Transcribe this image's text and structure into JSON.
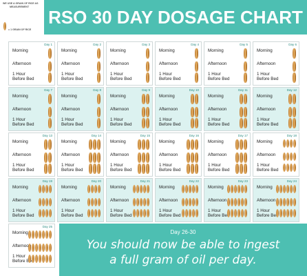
{
  "header": {
    "title": "RSO 30 DAY DOSAGE CHART",
    "legend_line1": "WE USE A GRAIN OF RICE AS",
    "legend_line2": "MEASUREMENT",
    "legend_note": "= 1 GRAIN OF RICE"
  },
  "row_labels": {
    "morning": "Morning",
    "afternoon": "Afternoon",
    "bed_line1": "1 Hour",
    "bed_line2": "Before Bed"
  },
  "days": [
    {
      "day": "Day 1",
      "morning": 1,
      "afternoon": 1,
      "bed": 1
    },
    {
      "day": "Day 2",
      "morning": 1,
      "afternoon": 1,
      "bed": 1
    },
    {
      "day": "Day 3",
      "morning": 1,
      "afternoon": 1,
      "bed": 1
    },
    {
      "day": "Day 4",
      "morning": 1,
      "afternoon": 1,
      "bed": 1
    },
    {
      "day": "Day 5",
      "morning": 1,
      "afternoon": 1,
      "bed": 1
    },
    {
      "day": "Day 6",
      "morning": 1,
      "afternoon": 1,
      "bed": 1
    },
    {
      "day": "Day 7",
      "morning": 1,
      "afternoon": 1,
      "bed": 1
    },
    {
      "day": "Day 8",
      "morning": 1,
      "afternoon": 1,
      "bed": 1
    },
    {
      "day": "Day 9",
      "morning": 2,
      "afternoon": 2,
      "bed": 2
    },
    {
      "day": "Day 10",
      "morning": 2,
      "afternoon": 2,
      "bed": 2
    },
    {
      "day": "Day 11",
      "morning": 2,
      "afternoon": 2,
      "bed": 2
    },
    {
      "day": "Day 12",
      "morning": 2,
      "afternoon": 2,
      "bed": 2
    },
    {
      "day": "Day 13",
      "morning": 2,
      "afternoon": 2,
      "bed": 2
    },
    {
      "day": "Day 14",
      "morning": 3,
      "afternoon": 3,
      "bed": 3
    },
    {
      "day": "Day 15",
      "morning": 3,
      "afternoon": 3,
      "bed": 3
    },
    {
      "day": "Day 16",
      "morning": 3,
      "afternoon": 3,
      "bed": 3
    },
    {
      "day": "Day 17",
      "morning": 3,
      "afternoon": 3,
      "bed": 3
    },
    {
      "day": "Day 18",
      "morning": 4,
      "afternoon": 4,
      "bed": 4
    },
    {
      "day": "Day 19",
      "morning": 4,
      "afternoon": 4,
      "bed": 4
    },
    {
      "day": "Day 20",
      "morning": 4,
      "afternoon": 4,
      "bed": 4
    },
    {
      "day": "Day 21",
      "morning": 5,
      "afternoon": 5,
      "bed": 5
    },
    {
      "day": "Day 22",
      "morning": 5,
      "afternoon": 5,
      "bed": 5
    },
    {
      "day": "Day 23",
      "morning": 6,
      "afternoon": 6,
      "bed": 6
    },
    {
      "day": "Day 24",
      "morning": 6,
      "afternoon": 6,
      "bed": 6
    },
    {
      "day": "Day 25",
      "morning": 7,
      "afternoon": 7,
      "bed": 7
    }
  ],
  "final": {
    "day": "Day 26-30",
    "line1": "You should now be able to ingest",
    "line2": "a full gram of oil per day."
  },
  "colors": {
    "teal": "#4dbfb2",
    "alt_cell": "#dcf2f0",
    "rice": "#d49a4e"
  }
}
